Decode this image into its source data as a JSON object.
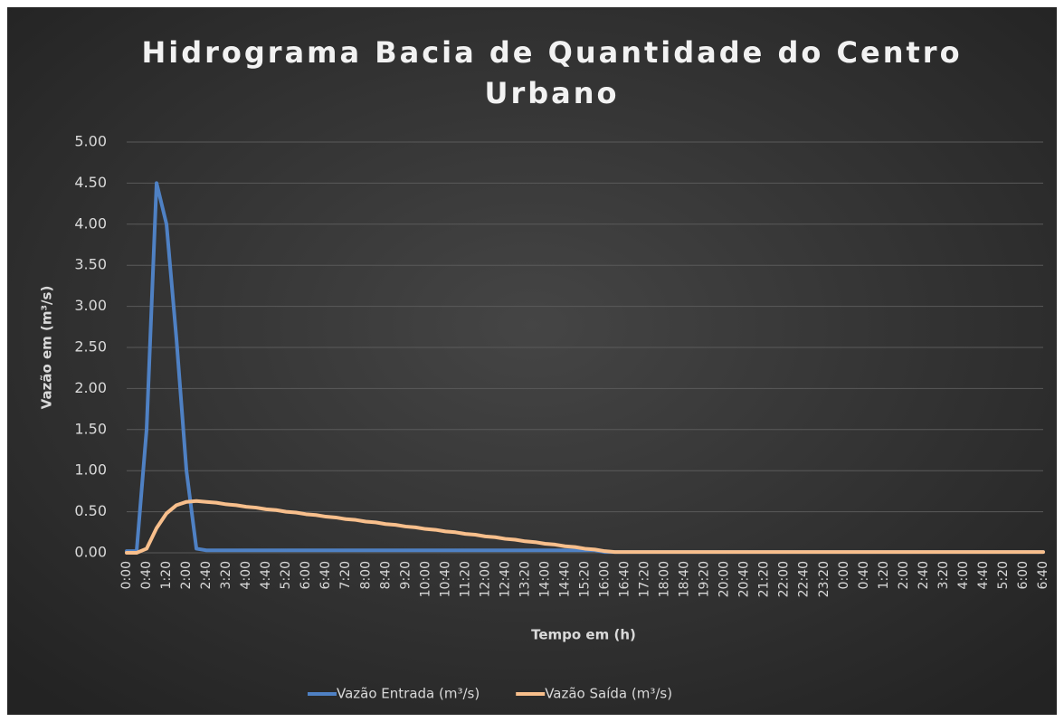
{
  "chart_data": {
    "type": "line",
    "title": [
      "Hidrograma Bacia de Quantidade do Centro",
      "Urbano"
    ],
    "xlabel": "Tempo em (h)",
    "ylabel": "Vazão em (m³/s)",
    "categories": [
      "0:00",
      null,
      "0:40",
      null,
      "1:20",
      null,
      "2:00",
      null,
      "2:40",
      null,
      "3:20",
      null,
      "4:00",
      null,
      "4:40",
      null,
      "5:20",
      null,
      "6:00",
      null,
      "6:40",
      null,
      "7:20",
      null,
      "8:00",
      null,
      "8:40",
      null,
      "9:20",
      null,
      "10:00",
      null,
      "10:40",
      null,
      "11:20",
      null,
      "12:00",
      null,
      "12:40",
      null,
      "13:20",
      null,
      "14:00",
      null,
      "14:40",
      null,
      "15:20",
      null,
      "16:00",
      null,
      "16:40",
      null,
      "17:20",
      null,
      "18:00",
      null,
      "18:40",
      null,
      "19:20",
      null,
      "20:00",
      null,
      "20:40",
      null,
      "21:20",
      null,
      "22:00",
      null,
      "22:40",
      null,
      "23:20",
      null,
      "0:00",
      null,
      "0:40",
      null,
      "1:20",
      null,
      "2:00",
      null,
      "2:40",
      null,
      "3:20",
      null,
      "4:00",
      null,
      "4:40",
      null,
      "5:20",
      null,
      "6:00",
      null,
      "6:40"
    ],
    "series": [
      {
        "name": "Vazão Entrada (m³/s)",
        "color": "#4f81c4",
        "values": [
          0.02,
          0.02,
          1.5,
          4.5,
          4.0,
          2.6,
          1.0,
          0.05,
          0.03,
          0.03,
          0.03,
          0.03,
          0.03,
          0.03,
          0.03,
          0.03,
          0.03,
          0.03,
          0.03,
          0.03,
          0.03,
          0.03,
          0.03,
          0.03,
          0.03,
          0.03,
          0.03,
          0.03,
          0.03,
          0.03,
          0.03,
          0.03,
          0.03,
          0.03,
          0.03,
          0.03,
          0.03,
          0.03,
          0.03,
          0.03,
          0.03,
          0.03,
          0.03,
          0.03,
          0.03,
          0.03,
          0.03,
          0.03,
          0.01,
          0.01,
          0.01,
          0.01,
          0.01,
          0.01,
          0.01,
          0.01,
          0.01,
          0.01,
          0.01,
          0.01,
          0.01,
          0.01,
          0.01,
          0.01,
          0.01,
          0.01,
          0.01,
          0.01,
          0.01,
          0.01,
          0.01,
          0.01,
          0.01,
          0.01,
          0.01,
          0.01,
          0.01,
          0.01,
          0.01,
          0.01,
          0.01,
          0.01,
          0.01,
          0.01,
          0.01,
          0.01,
          0.01,
          0.01,
          0.01,
          0.01,
          0.01,
          0.01,
          0.01
        ]
      },
      {
        "name": "Vazão Saída (m³/s)",
        "color": "#f8bf8c",
        "values": [
          0,
          0,
          0.05,
          0.3,
          0.48,
          0.58,
          0.62,
          0.63,
          0.62,
          0.61,
          0.59,
          0.58,
          0.56,
          0.55,
          0.53,
          0.52,
          0.5,
          0.49,
          0.47,
          0.46,
          0.44,
          0.43,
          0.41,
          0.4,
          0.38,
          0.37,
          0.35,
          0.34,
          0.32,
          0.31,
          0.29,
          0.28,
          0.26,
          0.25,
          0.23,
          0.22,
          0.2,
          0.19,
          0.17,
          0.16,
          0.14,
          0.13,
          0.11,
          0.1,
          0.08,
          0.07,
          0.05,
          0.04,
          0.02,
          0.01,
          0.01,
          0.01,
          0.01,
          0.01,
          0.01,
          0.01,
          0.01,
          0.01,
          0.01,
          0.01,
          0.01,
          0.01,
          0.01,
          0.01,
          0.01,
          0.01,
          0.01,
          0.01,
          0.01,
          0.01,
          0.01,
          0.01,
          0.01,
          0.01,
          0.01,
          0.01,
          0.01,
          0.01,
          0.01,
          0.01,
          0.01,
          0.01,
          0.01,
          0.01,
          0.01,
          0.01,
          0.01,
          0.01,
          0.01,
          0.01,
          0.01,
          0.01,
          0.01
        ]
      }
    ],
    "ylim": [
      0,
      5
    ],
    "yticks": [
      {
        "value": 0,
        "label": "0.00"
      },
      {
        "value": 0.5,
        "label": "0.50"
      },
      {
        "value": 1,
        "label": "1.00"
      },
      {
        "value": 1.5,
        "label": "1.50"
      },
      {
        "value": 2,
        "label": "2.00"
      },
      {
        "value": 2.5,
        "label": "2.50"
      },
      {
        "value": 3,
        "label": "3.00"
      },
      {
        "value": 3.5,
        "label": "3.50"
      },
      {
        "value": 4,
        "label": "4.00"
      },
      {
        "value": 4.5,
        "label": "4.50"
      },
      {
        "value": 5,
        "label": "5.00"
      }
    ],
    "grid": true,
    "legend": "bottom"
  }
}
